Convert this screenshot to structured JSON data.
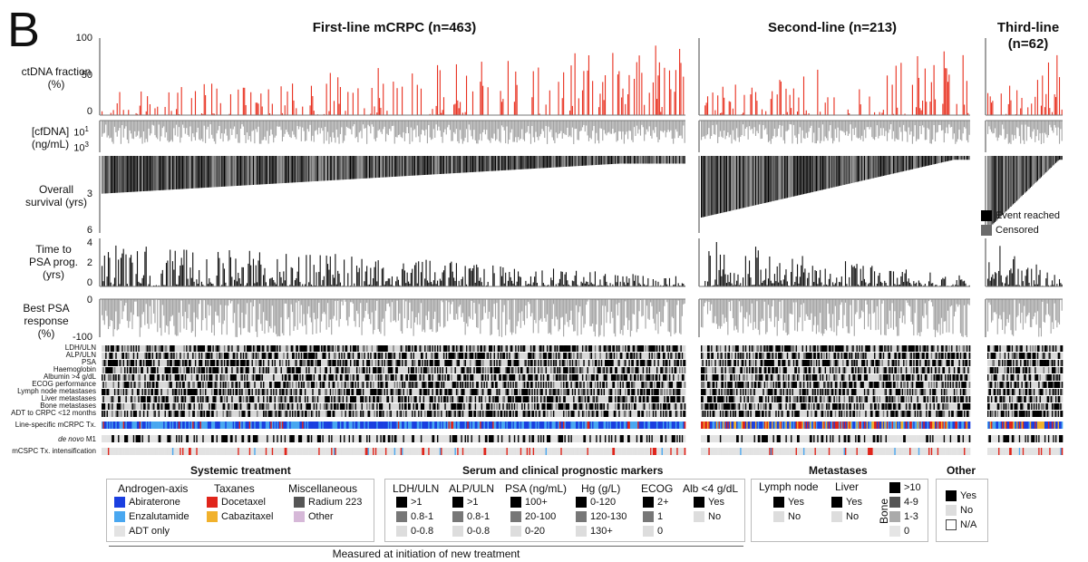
{
  "panel_letter": "B",
  "cohorts": [
    {
      "title": "First-line mCRPC (n=463)",
      "n": 463
    },
    {
      "title": "Second-line (n=213)",
      "n": 213
    },
    {
      "title": "Third-line",
      "subtitle": "(n=62)",
      "n": 62
    }
  ],
  "row_labels": {
    "ctdna": "ctDNA fraction (%)",
    "cfdna": "[cfDNA] (ng/mL)",
    "os": "Overall survival (yrs)",
    "psa_prog": "Time to PSA prog. (yrs)",
    "psa_resp": "Best PSA response (%)"
  },
  "ticks": {
    "ctdna": [
      "100",
      "50",
      "0"
    ],
    "cfdna": [
      "10",
      "1",
      "10",
      "3"
    ],
    "os": [
      "3",
      "6"
    ],
    "psa_prog": [
      "4",
      "2",
      "0"
    ],
    "psa_resp": [
      "0",
      "-100"
    ]
  },
  "track_labels": [
    "LDH/ULN",
    "ALP/ULN",
    "PSA",
    "Haemoglobin",
    "Albumin >4 g/dL",
    "ECOG performance",
    "Lymph node metastases",
    "Liver metastases",
    "Bone metastases",
    "ADT to CRPC <12 months"
  ],
  "extra_tracks": {
    "line_tx": "Line-specific mCRPC Tx.",
    "denovo": "de novo",
    "denovo_suffix": "M1",
    "mcspc": "mCSPC Tx. intensification"
  },
  "os_legend": {
    "event": "Event reached",
    "censored": "Censored"
  },
  "legend": {
    "systemic_title": "Systemic treatment",
    "androgen_title": "Androgen-axis",
    "androgen_items": [
      "Abiraterone",
      "Enzalutamide",
      "ADT only"
    ],
    "taxane_title": "Taxanes",
    "taxane_items": [
      "Docetaxel",
      "Cabazitaxel"
    ],
    "misc_title": "Miscellaneous",
    "misc_items": [
      "Radium 223",
      "Other"
    ],
    "serum_title": "Serum and clinical prognostic markers",
    "ldh": {
      "title": "LDH/ULN",
      "items": [
        ">1",
        "0.8-1",
        "0-0.8"
      ]
    },
    "alp": {
      "title": "ALP/ULN",
      "items": [
        ">1",
        "0.8-1",
        "0-0.8"
      ]
    },
    "psa": {
      "title": "PSA (ng/mL)",
      "items": [
        "100+",
        "20-100",
        "0-20"
      ]
    },
    "hg": {
      "title": "Hg (g/L)",
      "items": [
        "0-120",
        "120-130",
        "130+"
      ]
    },
    "ecog": {
      "title": "ECOG",
      "items": [
        "2+",
        "1",
        "0"
      ]
    },
    "alb": {
      "title": "Alb <4 g/dL",
      "items": [
        "Yes",
        "No"
      ]
    },
    "measured": "Measured at initiation of new treatment",
    "met_title": "Metastases",
    "lymph": {
      "title": "Lymph node",
      "items": [
        "Yes",
        "No"
      ]
    },
    "liver": {
      "title": "Liver",
      "items": [
        "Yes",
        "No"
      ]
    },
    "bone": {
      "title": "Bone",
      "items": [
        ">10",
        "4-9",
        "1-3",
        "0"
      ]
    },
    "other_title": "Other",
    "other_items": [
      "Yes",
      "No",
      "N/A"
    ]
  },
  "colors": {
    "ctdna_bar": "#e8301f",
    "grey_bar": "#a3a3a3",
    "event": "#000000",
    "censored": "#6b6b6b",
    "abiraterone": "#1a3fe0",
    "enzalutamide": "#49a7f0",
    "adt_only": "#e3e3e3",
    "docetaxel": "#e0251b",
    "cabazitaxel": "#f1b12c",
    "radium": "#555555",
    "other": "#d6b8d8"
  },
  "chart_data": {
    "type": "bar",
    "note": "Oncoprint-style patient-level figure; each bar is one patient, sorted by overall survival within cohort",
    "series": [
      {
        "name": "ctDNA fraction (%)",
        "ylim": [
          0,
          100
        ]
      },
      {
        "name": "[cfDNA] (ng/mL)",
        "scale": "log"
      },
      {
        "name": "Overall survival (yrs)",
        "ylim": [
          0,
          6
        ]
      },
      {
        "name": "Time to PSA prog. (yrs)",
        "ylim": [
          0,
          4
        ]
      },
      {
        "name": "Best PSA response (%)",
        "ylim": [
          -100,
          0
        ]
      }
    ],
    "cohort_n": [
      463,
      213,
      62
    ]
  }
}
